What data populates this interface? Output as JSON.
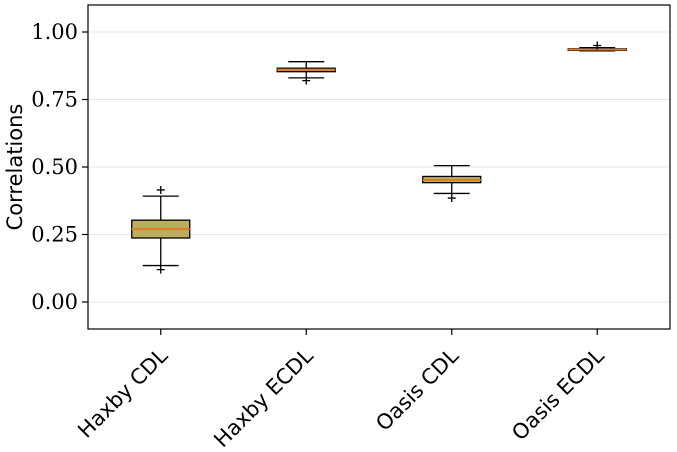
{
  "chart_data": {
    "type": "box",
    "title": "",
    "xlabel": "",
    "ylabel": "Correlations",
    "ylim": [
      -0.1,
      1.1
    ],
    "yticks": [
      0.0,
      0.25,
      0.5,
      0.75,
      1.0
    ],
    "ytick_labels": [
      "0.00",
      "0.25",
      "0.50",
      "0.75",
      "1.00"
    ],
    "grid": "horizontal",
    "colors": {
      "box_fill": "#bcae5f",
      "median": "#e07b28",
      "whisker": "#000000",
      "grid": "#e6e6e6"
    },
    "categories": [
      "Haxby CDL",
      "Haxby ECDL",
      "Oasis CDL",
      "Oasis ECDL"
    ],
    "boxes": [
      {
        "whisker_low": 0.135,
        "q1": 0.237,
        "median": 0.27,
        "q3": 0.303,
        "whisker_high": 0.392,
        "fliers": [
          0.12,
          0.415
        ]
      },
      {
        "whisker_low": 0.83,
        "q1": 0.853,
        "median": 0.86,
        "q3": 0.866,
        "whisker_high": 0.89,
        "fliers": [
          0.82
        ]
      },
      {
        "whisker_low": 0.402,
        "q1": 0.442,
        "median": 0.452,
        "q3": 0.465,
        "whisker_high": 0.505,
        "fliers": [
          0.385
        ]
      },
      {
        "whisker_low": 0.93,
        "q1": 0.932,
        "median": 0.935,
        "q3": 0.938,
        "whisker_high": 0.942,
        "fliers": [
          0.95
        ]
      }
    ]
  }
}
